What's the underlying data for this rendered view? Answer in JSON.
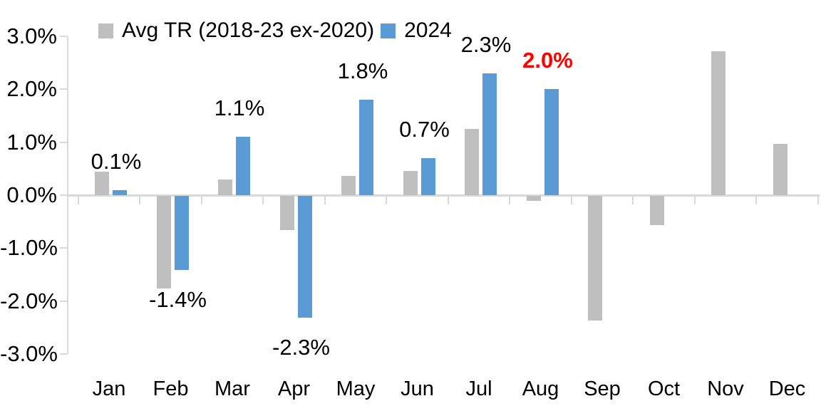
{
  "chart_data": {
    "type": "bar",
    "title": "",
    "xlabel": "",
    "ylabel": "",
    "categories": [
      "Jan",
      "Feb",
      "Mar",
      "Apr",
      "May",
      "Jun",
      "Jul",
      "Aug",
      "Sep",
      "Oct",
      "Nov",
      "Dec"
    ],
    "series": [
      {
        "name": "Avg TR (2018-23 ex-2020)",
        "color": "#BFBFBF",
        "values": [
          0.45,
          -1.75,
          0.3,
          -0.65,
          0.37,
          0.46,
          1.25,
          -0.1,
          -2.35,
          -0.55,
          2.72,
          0.97
        ]
      },
      {
        "name": "2024",
        "color": "#5B9BD5",
        "values": [
          0.1,
          -1.4,
          1.1,
          -2.3,
          1.8,
          0.7,
          2.3,
          2.0,
          null,
          null,
          null,
          null
        ]
      }
    ],
    "data_labels": [
      {
        "month": "Jan",
        "text": "0.1%",
        "color": "#000000",
        "bold": false
      },
      {
        "month": "Feb",
        "text": "-1.4%",
        "color": "#000000",
        "bold": false
      },
      {
        "month": "Mar",
        "text": "1.1%",
        "color": "#000000",
        "bold": false
      },
      {
        "month": "Apr",
        "text": "-2.3%",
        "color": "#000000",
        "bold": false
      },
      {
        "month": "May",
        "text": "1.8%",
        "color": "#000000",
        "bold": false
      },
      {
        "month": "Jun",
        "text": "0.7%",
        "color": "#000000",
        "bold": false
      },
      {
        "month": "Jul",
        "text": "2.3%",
        "color": "#000000",
        "bold": false
      },
      {
        "month": "Aug",
        "text": "2.0%",
        "color": "#FF0000",
        "bold": true
      }
    ],
    "yticks": [
      {
        "value": 3.0,
        "label": "3.0%"
      },
      {
        "value": 2.0,
        "label": "2.0%"
      },
      {
        "value": 1.0,
        "label": "1.0%"
      },
      {
        "value": 0.0,
        "label": "0.0%"
      },
      {
        "value": -1.0,
        "label": "-1.0%"
      },
      {
        "value": -2.0,
        "label": "-2.0%"
      },
      {
        "value": -3.0,
        "label": "-3.0%"
      }
    ],
    "ylim": [
      -3.0,
      3.0
    ],
    "grid": false,
    "legend_position": "top-left",
    "axis_color": "#D9D9D9",
    "text_color": "#000000",
    "highlight_color": "#FF0000",
    "background_color": "#FFFFFF"
  }
}
